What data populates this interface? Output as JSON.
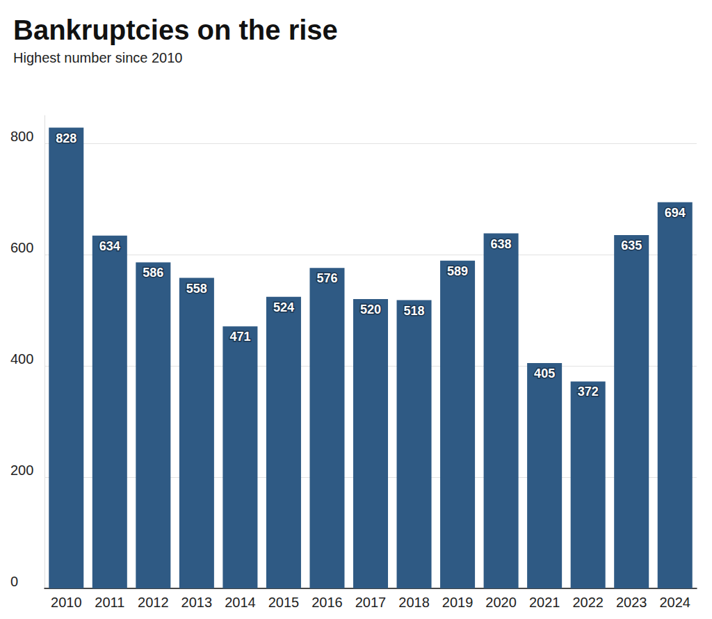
{
  "chart_data": {
    "type": "bar",
    "title": "Bankruptcies on the rise",
    "subtitle": "Highest number since 2010",
    "categories": [
      "2010",
      "2011",
      "2012",
      "2013",
      "2014",
      "2015",
      "2016",
      "2017",
      "2018",
      "2019",
      "2020",
      "2021",
      "2022",
      "2023",
      "2024"
    ],
    "values": [
      828,
      634,
      586,
      558,
      471,
      524,
      576,
      520,
      518,
      589,
      638,
      405,
      372,
      635,
      694
    ],
    "color": "#2f5a84",
    "ylim": [
      0,
      850
    ],
    "yticks": [
      0,
      200,
      400,
      600,
      800
    ],
    "grid": true,
    "data_labels": true
  }
}
